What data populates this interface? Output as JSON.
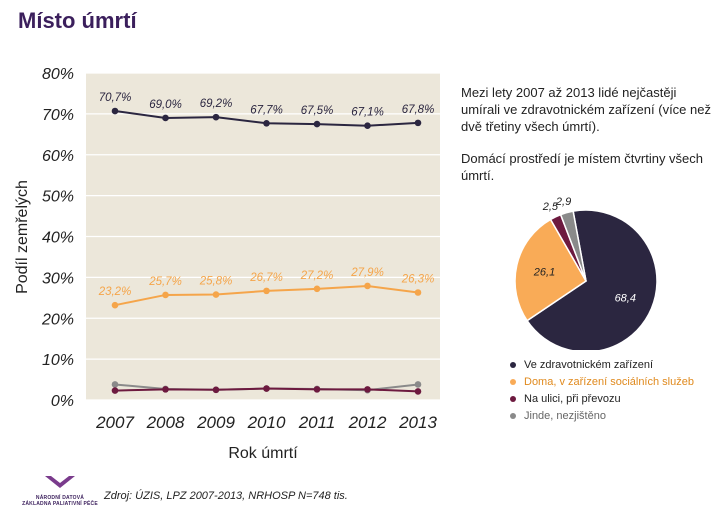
{
  "page": {
    "title": "Místo úmrtí",
    "description_1": "Mezi lety 2007 až 2013 lidé nejčastěji umírali ve zdravotnickém zařízení (více než dvě třetiny všech úmrtí).",
    "description_2": "Domácí prostředí je místem čtvrtiny všech úmrtí.",
    "source": "Zdroj: ÚZIS, LPZ 2007-2013, NRHOSP N=748 tis.",
    "logo_line1": "NÁRODNÍ DATOVÁ",
    "logo_line2": "ZÁKLADNA PALIATIVNÍ PÉČE",
    "logo_icon": "ndzpp-logo-icon",
    "logo_color": "#7a3b8c"
  },
  "chart_data": [
    {
      "type": "line",
      "xlabel": "Rok úmrtí",
      "ylabel": "Podíl zemřelých",
      "x": [
        "2007",
        "2008",
        "2009",
        "2010",
        "2011",
        "2012",
        "2013"
      ],
      "ylim": [
        0,
        80
      ],
      "yticks": [
        "0%",
        "10%",
        "20%",
        "30%",
        "40%",
        "50%",
        "60%",
        "70%",
        "80%"
      ],
      "grid": true,
      "background": "#ece7da",
      "series": [
        {
          "color": "#2b2640",
          "values": [
            70.7,
            69.0,
            69.2,
            67.7,
            67.5,
            67.1,
            67.8
          ],
          "labels": [
            "70,7%",
            "69,0%",
            "69,2%",
            "67,7%",
            "67,5%",
            "67,1%",
            "67,8%"
          ]
        },
        {
          "color": "#f5a54a",
          "values": [
            23.2,
            25.7,
            25.8,
            26.7,
            27.2,
            27.9,
            26.3
          ],
          "labels": [
            "23,2%",
            "25,7%",
            "25,8%",
            "26,7%",
            "27,2%",
            "27,9%",
            "26,3%"
          ]
        },
        {
          "color": "#6d1a3f",
          "values": [
            2.3,
            2.6,
            2.5,
            2.8,
            2.6,
            2.6,
            2.1
          ]
        },
        {
          "color": "#8a8a8a",
          "values": [
            3.8,
            2.7,
            2.5,
            2.8,
            2.7,
            2.4,
            3.8
          ]
        }
      ]
    },
    {
      "type": "pie",
      "slices": [
        {
          "name": "Ve zdravotnickém zařízení",
          "value": 68.4,
          "label": "68,4",
          "color": "#2b2640",
          "label_color": "#ffffff"
        },
        {
          "name": "Doma, v zařízení sociálních služeb",
          "value": 26.1,
          "label": "26,1",
          "color": "#f9ab57",
          "label_color": "#222222"
        },
        {
          "name": "Na ulici, při převozu",
          "value": 2.5,
          "label": "2,5",
          "color": "#6d1a3f",
          "label_color": "#222222"
        },
        {
          "name": "Jinde, nezjištěno",
          "value": 2.9,
          "label": "2,9",
          "color": "#8a8a8a",
          "label_color": "#222222"
        }
      ],
      "legend": [
        {
          "name": "Ve zdravotnickém zařízení",
          "color": "#2b2640",
          "text_color": "#222222"
        },
        {
          "name": "Doma, v zařízení sociálních služeb",
          "color": "#f9ab57",
          "text_color": "#e08a1e"
        },
        {
          "name": "Na ulici, při převozu",
          "color": "#6d1a3f",
          "text_color": "#222222"
        },
        {
          "name": "Jinde, nezjištěno",
          "color": "#8a8a8a",
          "text_color": "#666666"
        }
      ],
      "legend_position": "bottom"
    }
  ]
}
